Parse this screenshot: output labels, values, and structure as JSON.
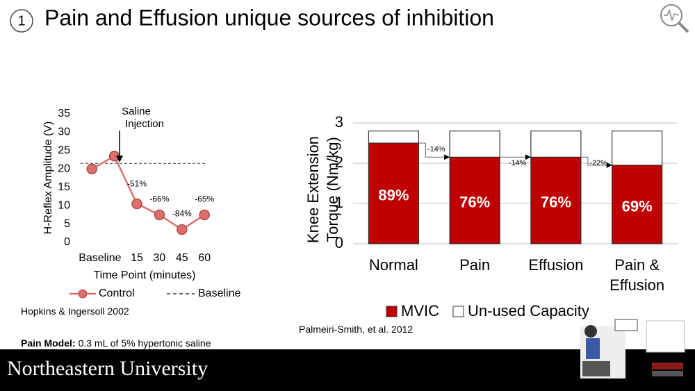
{
  "slide": {
    "number": "1",
    "title": "Pain and Effusion unique sources of inhibition",
    "citations": [
      "Hopkins & Ingersoll 2002",
      "Palmeiri-Smith, et al. 2012"
    ],
    "note": {
      "label": "Pain Model:",
      "text": "0.3 mL of 5% hypertonic saline"
    },
    "footer": "Northeastern University"
  },
  "chart_data": [
    {
      "type": "line",
      "ylabel": "H-Reflex Amplitude (V)",
      "xlabel": "Time Point (minutes)",
      "categories": [
        "Baseline",
        null,
        "15",
        "30",
        "45",
        "60"
      ],
      "series": [
        {
          "name": "Control",
          "color": "#d9706e",
          "values": [
            20,
            23.5,
            10.5,
            7.5,
            3.5,
            7.5
          ]
        }
      ],
      "point_labels": [
        null,
        null,
        "-51%",
        "-66%",
        "-84%",
        "-65%"
      ],
      "reference_line": {
        "name": "Baseline",
        "value": 21.5
      },
      "annotation": [
        "Saline",
        "Injection"
      ],
      "ylim": [
        0,
        35
      ],
      "yticks": [
        0,
        5,
        10,
        15,
        20,
        25,
        30,
        35
      ]
    },
    {
      "type": "stacked_bar",
      "ylabel": "Knee Extension Torque (Nm/kg)",
      "categories": [
        "Normal",
        "Pain",
        "Effusion",
        "Pain & Effusion"
      ],
      "series": [
        {
          "name": "MVIC",
          "color": "#c00000",
          "values": [
            2.5,
            2.15,
            2.15,
            1.95
          ]
        },
        {
          "name": "Un-used Capacity",
          "color": "#ffffff",
          "values": [
            0.3,
            0.65,
            0.65,
            0.85
          ]
        }
      ],
      "percent_labels": [
        "89%",
        "76%",
        "76%",
        "69%"
      ],
      "change_labels": [
        "-14%",
        "-14%",
        "-22%"
      ],
      "ylim": [
        0,
        3
      ],
      "yticks": [
        0,
        1,
        2,
        3
      ],
      "grid": true
    }
  ]
}
